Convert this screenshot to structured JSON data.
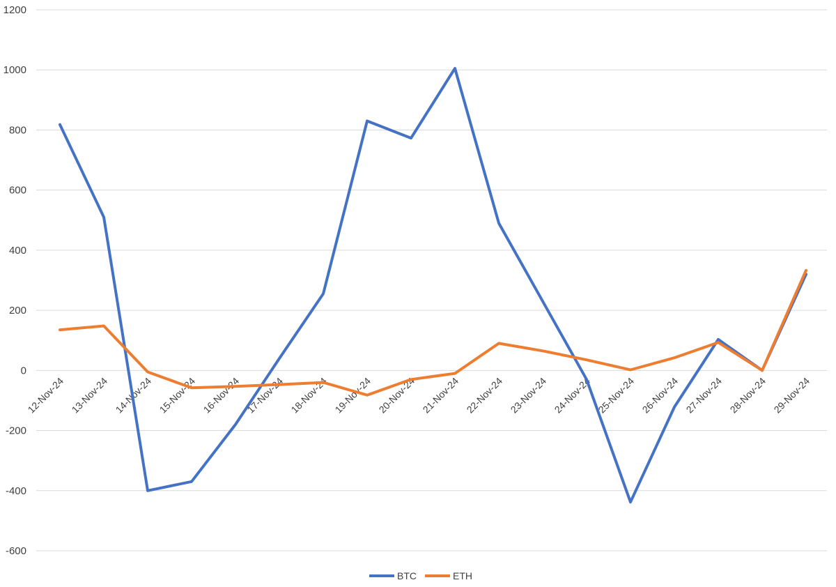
{
  "chart_data": {
    "type": "line",
    "title": "",
    "xlabel": "",
    "ylabel": "",
    "categories": [
      "12-Nov-24",
      "13-Nov-24",
      "14-Nov-24",
      "15-Nov-24",
      "16-Nov-24",
      "17-Nov-24",
      "18-Nov-24",
      "19-Nov-24",
      "20-Nov-24",
      "21-Nov-24",
      "22-Nov-24",
      "23-Nov-24",
      "24-Nov-24",
      "25-Nov-24",
      "26-Nov-24",
      "27-Nov-24",
      "28-Nov-24",
      "29-Nov-24"
    ],
    "yticks": [
      "-600",
      "-400",
      "-200",
      "0",
      "200",
      "400",
      "600",
      "800",
      "1000",
      "1200"
    ],
    "ylim": [
      -600,
      1200
    ],
    "grid": true,
    "legend_position": "bottom",
    "series": [
      {
        "name": "BTC",
        "color": "#4472c4",
        "values": [
          818,
          510,
          -400,
          -370,
          -180,
          40,
          255,
          830,
          773,
          1005,
          490,
          230,
          -30,
          -438,
          -122,
          103,
          0,
          320
        ]
      },
      {
        "name": "ETH",
        "color": "#ed7d31",
        "values": [
          135,
          148,
          -5,
          -58,
          -53,
          -47,
          -40,
          -82,
          -30,
          -10,
          90,
          65,
          35,
          2,
          42,
          93,
          0,
          333
        ]
      }
    ]
  }
}
